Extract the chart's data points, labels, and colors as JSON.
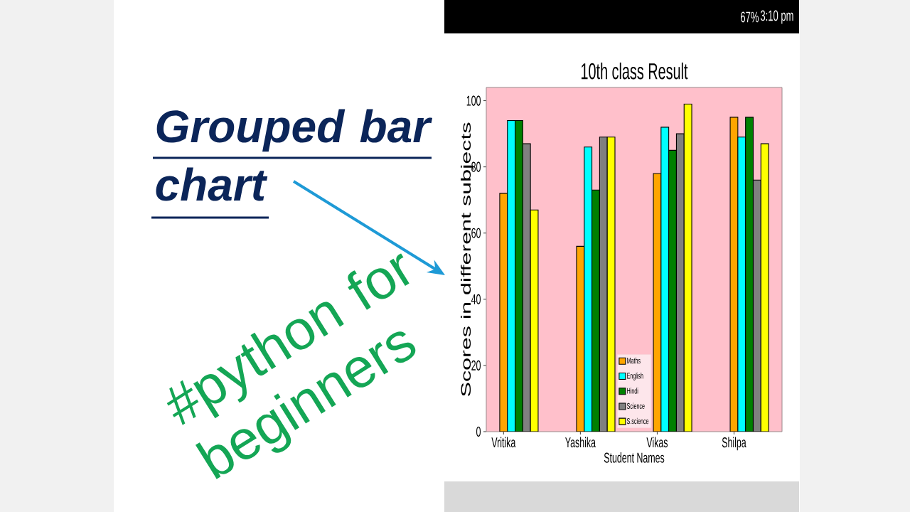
{
  "chart_data": {
    "type": "bar",
    "title": "10th class Result",
    "xlabel": "Student Names",
    "ylabel": "Scores in different subjects",
    "categories": [
      "Vritika",
      "Yashika",
      "Vikas",
      "Shilpa"
    ],
    "series": [
      {
        "name": "Maths",
        "color": "#ffa500",
        "values": [
          72,
          56,
          78,
          95
        ]
      },
      {
        "name": "English",
        "color": "#00ffff",
        "values": [
          94,
          86,
          92,
          89
        ]
      },
      {
        "name": "Hindi",
        "color": "#008000",
        "values": [
          94,
          73,
          85,
          95
        ]
      },
      {
        "name": "Science",
        "color": "#808080",
        "values": [
          87,
          89,
          90,
          76
        ]
      },
      {
        "name": "S.science",
        "color": "#ffff00",
        "values": [
          67,
          89,
          99,
          87
        ]
      }
    ],
    "ylim": [
      0,
      104
    ],
    "yticks": [
      0,
      20,
      40,
      60,
      80,
      100
    ],
    "legend": "bottom",
    "annotations": [
      "Grouped bar chart",
      "#python for beginners",
      "67%",
      "3:10 pm"
    ]
  }
}
